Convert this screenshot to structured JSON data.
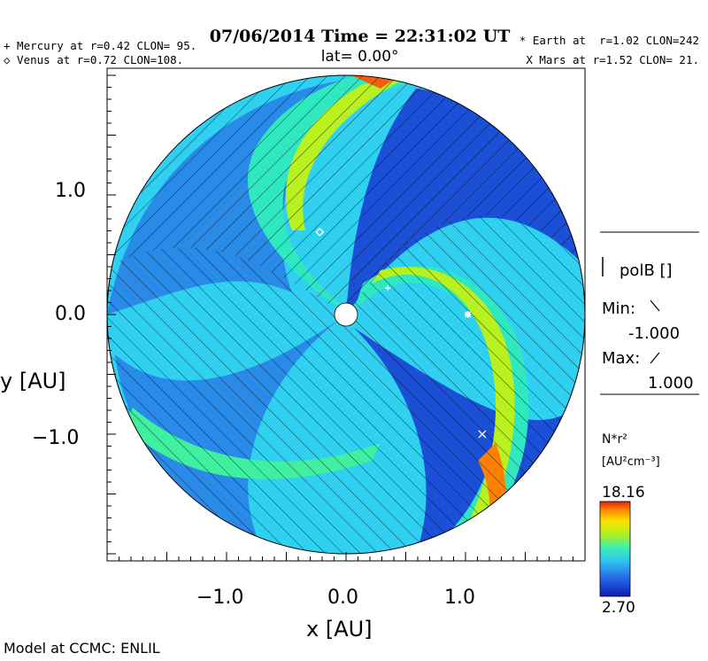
{
  "header": {
    "title": "07/06/2014 Time = 22:31:02 UT",
    "lat_label": "lat= 0.00°"
  },
  "planets": {
    "mercury": "+ Mercury at r=0.42 CLON= 95.",
    "venus": "◇ Venus at r=0.72 CLON=108.",
    "earth": "* Earth at  r=1.02 CLON=242",
    "mars": "X Mars at r=1.52 CLON= 21."
  },
  "side_panel": {
    "field_label": "polB []",
    "min_label": "Min:",
    "min_value": "-1.000",
    "max_label": "Max:",
    "max_value": "1.000",
    "colorbar_var": "N*r²",
    "colorbar_unit": "[AU²cm⁻³]",
    "colorbar_max": "18.16",
    "colorbar_min": "2.70"
  },
  "footer": {
    "credit": "Model at CCMC: ENLIL"
  },
  "colors": {
    "low": "#0a1fb5",
    "mid_low": "#2aa8f0",
    "mid": "#2fe8d0",
    "mid_high": "#b8f020",
    "high": "#ffe000",
    "peak": "#e83010"
  },
  "chart_data": {
    "type": "heatmap",
    "plot": "polar contour of normalized solar-wind density N*r² in ecliptic plane with spiral interaction regions; hatching shows polarity of IMF",
    "xlabel": "x [AU]",
    "ylabel": "y [AU]",
    "xlim": [
      -2.0,
      2.0
    ],
    "ylim": [
      -2.0,
      2.0
    ],
    "x_ticks": [
      -1.0,
      0.0,
      1.0
    ],
    "x_tick_labels": [
      "−1.0",
      "0.0",
      "1.0"
    ],
    "y_ticks": [
      1.0,
      0.0,
      -1.0
    ],
    "y_tick_labels": [
      "1.0",
      "0.0",
      "−1.0"
    ],
    "outer_radius_au": 2.0,
    "sun_radius_au": 0.1,
    "colorbar": {
      "min": 2.7,
      "max": 18.16
    },
    "polarity": {
      "min": -1.0,
      "max": 1.0,
      "min_hatch": "\\",
      "max_hatch": "/"
    },
    "bodies": [
      {
        "name": "Mercury",
        "marker": "+",
        "r_au": 0.42,
        "clon": 95,
        "x": 0.35,
        "y": 0.22
      },
      {
        "name": "Venus",
        "marker": "diamond",
        "r_au": 0.72,
        "clon": 108,
        "x": -0.22,
        "y": 0.69
      },
      {
        "name": "Earth",
        "marker": "*",
        "r_au": 1.02,
        "clon": 242,
        "x": 1.02,
        "y": 0.0
      },
      {
        "name": "Mars",
        "marker": "x",
        "r_au": 1.52,
        "clon": 21,
        "x": 1.14,
        "y": -1.0
      }
    ]
  }
}
